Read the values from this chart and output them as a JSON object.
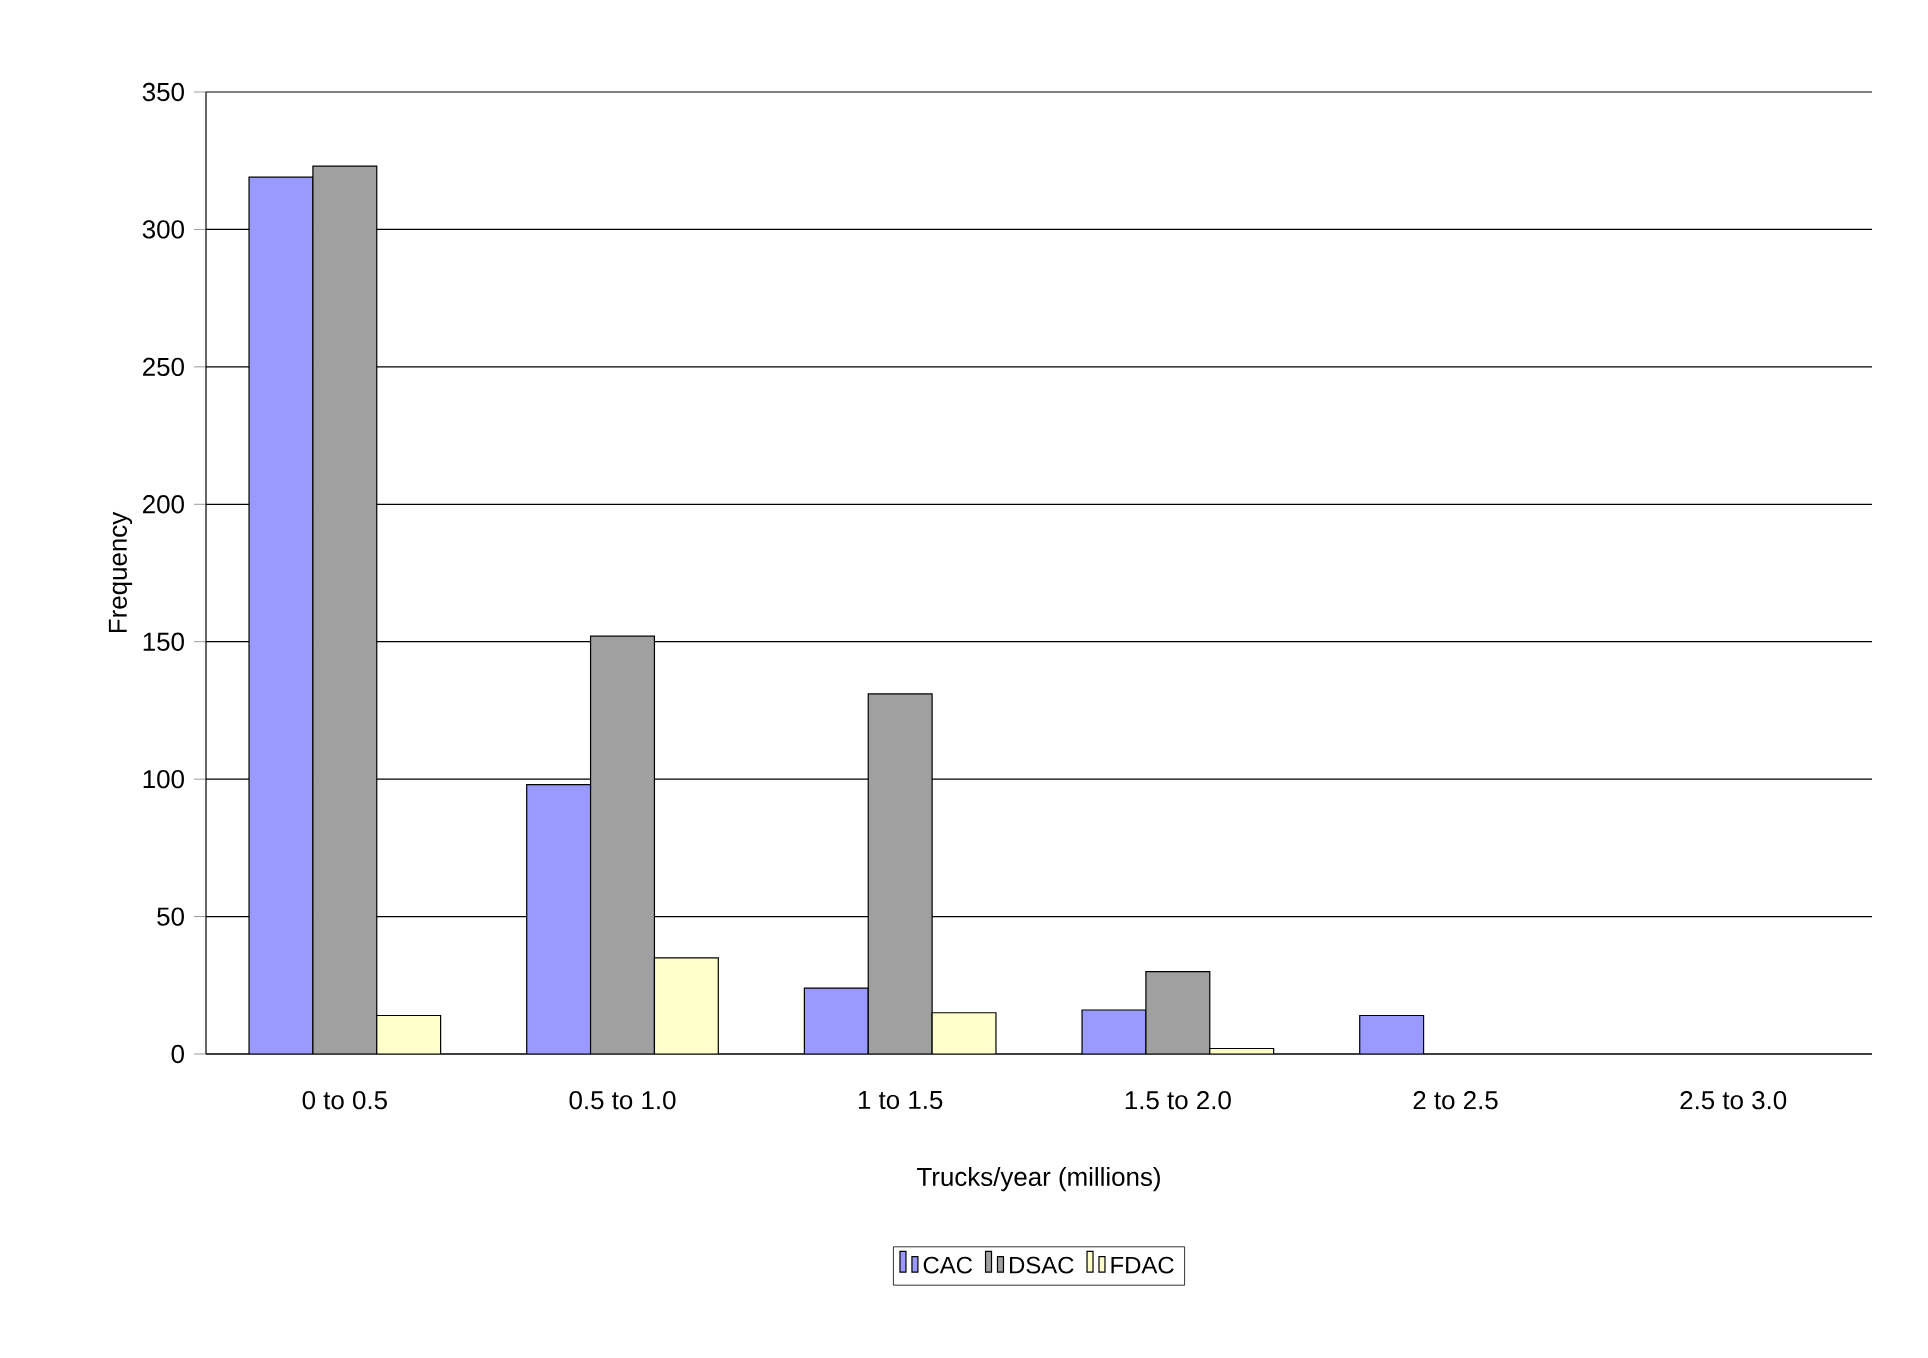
{
  "chart_data": {
    "type": "bar",
    "xlabel": "Trucks/year (millions)",
    "ylabel": "Frequency",
    "categories": [
      "0 to 0.5",
      "0.5 to 1.0",
      "1 to 1.5",
      "1.5 to 2.0",
      "2 to 2.5",
      "2.5 to 3.0"
    ],
    "series": [
      {
        "name": "CAC",
        "color": "#9999ff",
        "values": [
          319,
          98,
          24,
          16,
          14,
          0
        ]
      },
      {
        "name": "DSAC",
        "color": "#a0a0a0",
        "values": [
          323,
          152,
          131,
          30,
          0,
          0
        ]
      },
      {
        "name": "FDAC",
        "color": "#ffffcc",
        "values": [
          14,
          35,
          15,
          2,
          0,
          0
        ]
      }
    ],
    "ylim": [
      0,
      350
    ],
    "yticks": [
      0,
      50,
      100,
      150,
      200,
      250,
      300,
      350
    ],
    "grid": "y",
    "legend": "bottom"
  }
}
